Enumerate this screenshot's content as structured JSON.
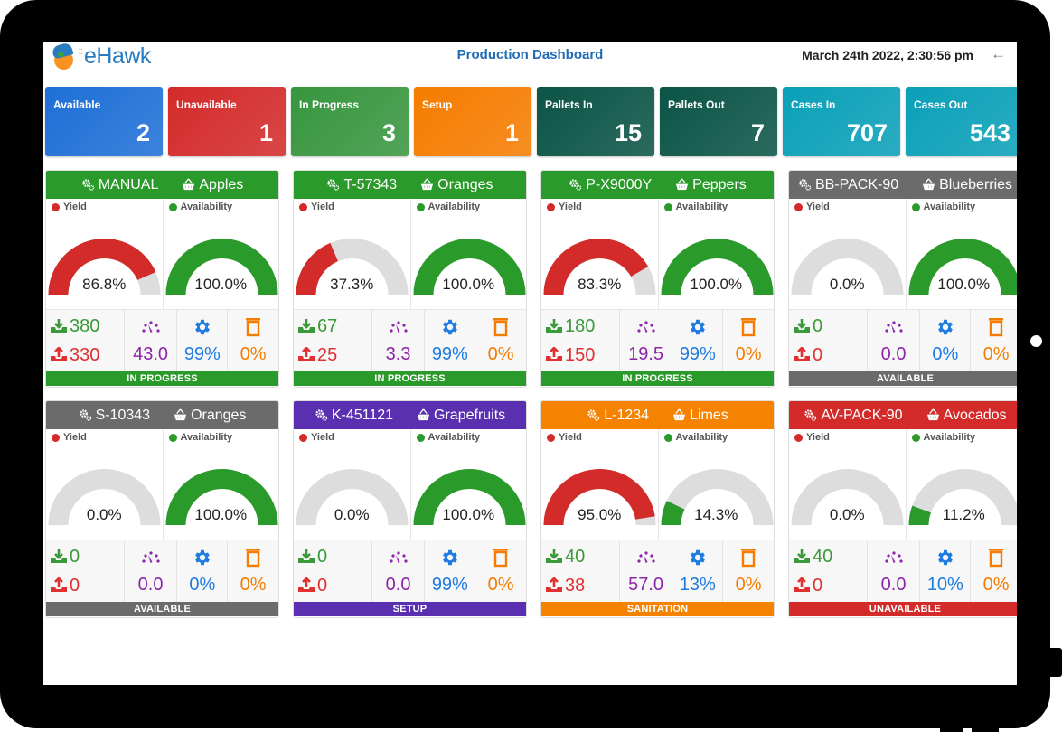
{
  "app": {
    "logo_text": "eHawk",
    "title": "Production Dashboard",
    "datetime": "March 24th 2022, 2:30:56 pm",
    "back_icon": "arrow-left-icon"
  },
  "colors": {
    "available": "#1e6fd6",
    "unavailable": "#d32a2a",
    "in_progress": "#2e8b3a",
    "setup": "#f57c00",
    "pallets": "#0b4f43",
    "cases": "#0a9db5",
    "yield": "#d32a2a",
    "availability": "#2a9a2a",
    "gauge_track": "#dddddd",
    "in_count": "#3a9a3a",
    "out_count": "#e03030",
    "speed": "#8e24aa",
    "efficiency": "#1e7be0",
    "waste": "#f57c00"
  },
  "summary": [
    {
      "label": "Available",
      "value": "2",
      "color": "#1e6fd6"
    },
    {
      "label": "Unavailable",
      "value": "1",
      "color": "#d32a2a"
    },
    {
      "label": "In Progress",
      "value": "3",
      "color": "#37963e"
    },
    {
      "label": "Setup",
      "value": "1",
      "color": "#f57c00"
    },
    {
      "label": "Pallets In",
      "value": "15",
      "color": "#0b5446"
    },
    {
      "label": "Pallets Out",
      "value": "7",
      "color": "#0b5446"
    },
    {
      "label": "Cases In",
      "value": "707",
      "color": "#0aa0b8"
    },
    {
      "label": "Cases Out",
      "value": "543",
      "color": "#0aa0b8"
    }
  ],
  "labels": {
    "yield": "Yield",
    "availability": "Availability"
  },
  "machines": [
    {
      "machine": "MANUAL",
      "product": "Apples",
      "color": "#2a9a2a",
      "yield": 86.8,
      "yield_text": "86.8%",
      "availability": 100.0,
      "availability_text": "100.0%",
      "in": "380",
      "out": "330",
      "speed": "43.0",
      "efficiency": "99%",
      "waste": "0%",
      "status": "IN PROGRESS"
    },
    {
      "machine": "T-57343",
      "product": "Oranges",
      "color": "#2a9a2a",
      "yield": 37.3,
      "yield_text": "37.3%",
      "availability": 100.0,
      "availability_text": "100.0%",
      "in": "67",
      "out": "25",
      "speed": "3.3",
      "efficiency": "99%",
      "waste": "0%",
      "status": "IN PROGRESS"
    },
    {
      "machine": "P-X9000Y",
      "product": "Peppers",
      "color": "#2a9a2a",
      "yield": 83.3,
      "yield_text": "83.3%",
      "availability": 100.0,
      "availability_text": "100.0%",
      "in": "180",
      "out": "150",
      "speed": "19.5",
      "efficiency": "99%",
      "waste": "0%",
      "status": "IN PROGRESS"
    },
    {
      "machine": "BB-PACK-90",
      "product": "Blueberries",
      "color": "#6b6b6b",
      "yield": 0.0,
      "yield_text": "0.0%",
      "availability": 100.0,
      "availability_text": "100.0%",
      "in": "0",
      "out": "0",
      "speed": "0.0",
      "efficiency": "0%",
      "waste": "0%",
      "status": "AVAILABLE"
    },
    {
      "machine": "S-10343",
      "product": "Oranges",
      "color": "#6b6b6b",
      "yield": 0.0,
      "yield_text": "0.0%",
      "availability": 100.0,
      "availability_text": "100.0%",
      "in": "0",
      "out": "0",
      "speed": "0.0",
      "efficiency": "0%",
      "waste": "0%",
      "status": "AVAILABLE"
    },
    {
      "machine": "K-451121",
      "product": "Grapefruits",
      "color": "#5a2fb0",
      "yield": 0.0,
      "yield_text": "0.0%",
      "availability": 100.0,
      "availability_text": "100.0%",
      "in": "0",
      "out": "0",
      "speed": "0.0",
      "efficiency": "99%",
      "waste": "0%",
      "status": "SETUP"
    },
    {
      "machine": "L-1234",
      "product": "Limes",
      "color": "#f58200",
      "yield": 95.0,
      "yield_text": "95.0%",
      "availability": 14.3,
      "availability_text": "14.3%",
      "in": "40",
      "out": "38",
      "speed": "57.0",
      "efficiency": "13%",
      "waste": "0%",
      "status": "SANITATION"
    },
    {
      "machine": "AV-PACK-90",
      "product": "Avocados",
      "color": "#d32a2a",
      "yield": 0.0,
      "yield_text": "0.0%",
      "availability": 11.2,
      "availability_text": "11.2%",
      "in": "40",
      "out": "0",
      "speed": "0.0",
      "efficiency": "10%",
      "waste": "0%",
      "status": "UNAVAILABLE"
    }
  ]
}
